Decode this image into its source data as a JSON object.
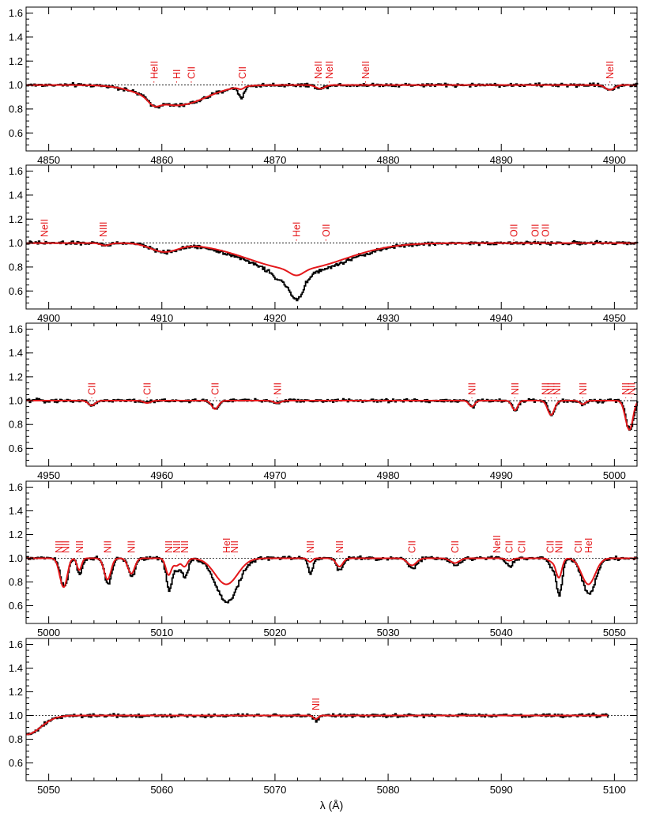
{
  "chart_data": [
    {
      "type": "line",
      "xlim": [
        4848,
        4902
      ],
      "ylim": [
        0.45,
        1.65
      ],
      "x_ticks": [
        4850,
        4860,
        4870,
        4880,
        4890,
        4900
      ],
      "y_ticks": [
        0.6,
        0.8,
        1.0,
        1.2,
        1.4,
        1.6
      ],
      "continuum": 1.0,
      "features": [
        {
          "x": 4859.3,
          "depth": 0.05,
          "width": 0.5
        },
        {
          "x": 4861.3,
          "depth": 0.17,
          "width": 2.6
        },
        {
          "x": 4867.0,
          "depth": 0.09,
          "width": 0.25,
          "model_depth": 0.02
        },
        {
          "x": 4874.0,
          "depth": 0.03,
          "width": 0.4
        },
        {
          "x": 4899.6,
          "depth": 0.04,
          "width": 0.4
        }
      ],
      "line_ids": [
        {
          "label": "HeII",
          "x": 4859.3
        },
        {
          "label": "HI",
          "x": 4861.3
        },
        {
          "label": "CII",
          "x": 4862.6
        },
        {
          "label": "CII",
          "x": 4867.1
        },
        {
          "label": "NeII",
          "x": 4873.8
        },
        {
          "label": "NeII",
          "x": 4874.8
        },
        {
          "label": "NeII",
          "x": 4878.0
        },
        {
          "label": "NeII",
          "x": 4899.6
        }
      ]
    },
    {
      "type": "line",
      "xlim": [
        4898,
        4952
      ],
      "ylim": [
        0.45,
        1.65
      ],
      "x_ticks": [
        4900,
        4910,
        4920,
        4930,
        4940,
        4950
      ],
      "y_ticks": [
        0.6,
        0.8,
        1.0,
        1.2,
        1.4,
        1.6
      ],
      "continuum": 1.0,
      "features": [
        {
          "x": 4910.2,
          "depth": 0.07,
          "width": 1.2
        },
        {
          "x": 4921.9,
          "depth": 0.26,
          "width": 4.2,
          "model_depth": 0.22
        },
        {
          "x": 4921.9,
          "depth": 0.2,
          "width": 0.6,
          "model_depth": 0.05
        },
        {
          "x": 4920.5,
          "depth": 0.06,
          "width": 0.8,
          "model_depth": 0.0
        },
        {
          "x": 4905.0,
          "depth": 0.02,
          "width": 0.4
        }
      ],
      "line_ids": [
        {
          "label": "NeII",
          "x": 4899.6
        },
        {
          "label": "NIII",
          "x": 4904.8
        },
        {
          "label": "HeI",
          "x": 4921.9
        },
        {
          "label": "OII",
          "x": 4924.5
        },
        {
          "label": "OII",
          "x": 4941.1
        },
        {
          "label": "OII",
          "x": 4943.0
        },
        {
          "label": "OII",
          "x": 4943.9
        }
      ]
    },
    {
      "type": "line",
      "xlim": [
        4948,
        5002
      ],
      "ylim": [
        0.45,
        1.65
      ],
      "x_ticks": [
        4950,
        4960,
        4970,
        4980,
        4990,
        5000
      ],
      "y_ticks": [
        0.6,
        0.8,
        1.0,
        1.2,
        1.4,
        1.6
      ],
      "continuum": 1.0,
      "features": [
        {
          "x": 4953.8,
          "depth": 0.04,
          "width": 0.3
        },
        {
          "x": 4958.7,
          "depth": 0.02,
          "width": 0.3
        },
        {
          "x": 4964.7,
          "depth": 0.07,
          "width": 0.3
        },
        {
          "x": 4970.2,
          "depth": 0.02,
          "width": 0.3
        },
        {
          "x": 4987.4,
          "depth": 0.05,
          "width": 0.25
        },
        {
          "x": 4991.2,
          "depth": 0.08,
          "width": 0.25
        },
        {
          "x": 4994.4,
          "depth": 0.12,
          "width": 0.3
        },
        {
          "x": 4997.2,
          "depth": 0.03,
          "width": 0.25
        },
        {
          "x": 5001.2,
          "depth": 0.18,
          "width": 0.3
        },
        {
          "x": 5001.5,
          "depth": 0.1,
          "width": 0.25
        }
      ],
      "line_ids": [
        {
          "label": "CII",
          "x": 4953.8
        },
        {
          "label": "CII",
          "x": 4958.7
        },
        {
          "label": "CII",
          "x": 4964.7
        },
        {
          "label": "NII",
          "x": 4970.2
        },
        {
          "label": "NII",
          "x": 4987.4
        },
        {
          "label": "NII",
          "x": 4991.2
        },
        {
          "label": "NII",
          "x": 4993.9
        },
        {
          "label": "NII",
          "x": 4994.4
        },
        {
          "label": "NII",
          "x": 4994.9
        },
        {
          "label": "NII",
          "x": 4997.2
        },
        {
          "label": "NII",
          "x": 5001.0
        },
        {
          "label": "NII",
          "x": 5001.5
        }
      ]
    },
    {
      "type": "line",
      "xlim": [
        4998,
        5052
      ],
      "ylim": [
        0.45,
        1.65
      ],
      "x_ticks": [
        5000,
        5010,
        5020,
        5030,
        5040,
        5050
      ],
      "y_ticks": [
        0.6,
        0.8,
        1.0,
        1.2,
        1.4,
        1.6
      ],
      "continuum": 1.0,
      "features": [
        {
          "x": 5001.2,
          "depth": 0.18,
          "width": 0.3
        },
        {
          "x": 5001.5,
          "depth": 0.1,
          "width": 0.25
        },
        {
          "x": 5002.7,
          "depth": 0.15,
          "width": 0.2,
          "model_depth": 0.1
        },
        {
          "x": 5005.2,
          "depth": 0.22,
          "width": 0.3,
          "model_depth": 0.18
        },
        {
          "x": 5007.3,
          "depth": 0.15,
          "width": 0.3,
          "model_depth": 0.13
        },
        {
          "x": 5010.6,
          "depth": 0.27,
          "width": 0.25,
          "model_depth": 0.14
        },
        {
          "x": 5011.3,
          "depth": 0.1,
          "width": 0.25,
          "model_depth": 0.06
        },
        {
          "x": 5012.0,
          "depth": 0.17,
          "width": 0.25,
          "model_depth": 0.07
        },
        {
          "x": 5015.7,
          "depth": 0.37,
          "width": 1.0,
          "model_depth": 0.22
        },
        {
          "x": 5023.1,
          "depth": 0.13,
          "width": 0.2,
          "model_depth": 0.03
        },
        {
          "x": 5025.7,
          "depth": 0.1,
          "width": 0.3,
          "model_depth": 0.07
        },
        {
          "x": 5032.1,
          "depth": 0.08,
          "width": 0.4,
          "model_depth": 0.06
        },
        {
          "x": 5035.9,
          "depth": 0.06,
          "width": 0.4,
          "model_depth": 0.04
        },
        {
          "x": 5040.7,
          "depth": 0.07,
          "width": 0.3,
          "model_depth": 0.02
        },
        {
          "x": 5044.5,
          "depth": 0.08,
          "width": 0.3,
          "model_depth": 0.03
        },
        {
          "x": 5045.1,
          "depth": 0.3,
          "width": 0.25,
          "model_depth": 0.16
        },
        {
          "x": 5047.7,
          "depth": 0.3,
          "width": 0.6,
          "model_depth": 0.22
        }
      ],
      "line_ids": [
        {
          "label": "NII",
          "x": 5000.9
        },
        {
          "label": "NII",
          "x": 5001.5
        },
        {
          "label": "NII",
          "x": 5002.7
        },
        {
          "label": "NII",
          "x": 5005.2
        },
        {
          "label": "NII",
          "x": 5007.3
        },
        {
          "label": "NII",
          "x": 5010.6
        },
        {
          "label": "NII",
          "x": 5011.3
        },
        {
          "label": "NII",
          "x": 5012.0
        },
        {
          "label": "HeI",
          "x": 5015.7
        },
        {
          "label": "NII",
          "x": 5016.4
        },
        {
          "label": "NII",
          "x": 5023.1
        },
        {
          "label": "NII",
          "x": 5025.7
        },
        {
          "label": "CII",
          "x": 5032.1
        },
        {
          "label": "CII",
          "x": 5035.9
        },
        {
          "label": "NeII",
          "x": 5039.6
        },
        {
          "label": "CII",
          "x": 5040.7
        },
        {
          "label": "CII",
          "x": 5041.8
        },
        {
          "label": "CII",
          "x": 5044.3
        },
        {
          "label": "NII",
          "x": 5045.1
        },
        {
          "label": "CII",
          "x": 5046.8
        },
        {
          "label": "HeI",
          "x": 5047.7
        }
      ]
    },
    {
      "type": "line",
      "xlim": [
        5048,
        5102
      ],
      "ylim": [
        0.45,
        1.65
      ],
      "x_ticks": [
        5050,
        5060,
        5070,
        5080,
        5090,
        5100
      ],
      "y_ticks": [
        0.6,
        0.8,
        1.0,
        1.2,
        1.4,
        1.6
      ],
      "continuum": 1.0,
      "data_end": 5099.4,
      "features": [
        {
          "x": 5048.0,
          "depth": 0.16,
          "width": 1.3
        },
        {
          "x": 5073.6,
          "depth": 0.05,
          "width": 0.2,
          "model_depth": 0.03
        }
      ],
      "line_ids": [
        {
          "label": "NII",
          "x": 5073.6
        }
      ],
      "xlabel": "λ (Å)"
    }
  ]
}
